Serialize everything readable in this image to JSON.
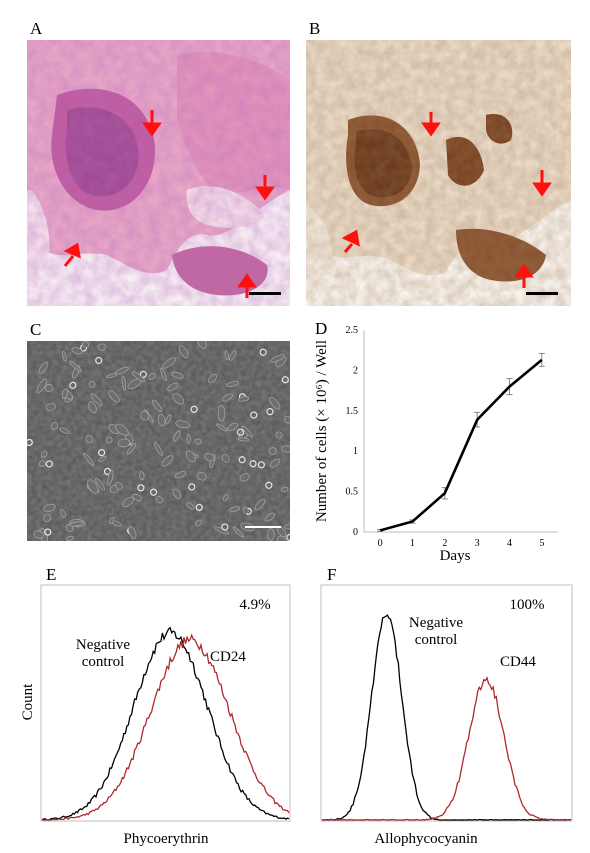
{
  "figure": {
    "panels": [
      {
        "label": "A",
        "kind": "micrograph",
        "stain": "H&E",
        "arrow_color": "#ff0000",
        "scale_bar": true
      },
      {
        "label": "B",
        "kind": "micrograph",
        "stain": "immunohistochemistry",
        "arrow_color": "#ff0000",
        "scale_bar": true
      },
      {
        "label": "C",
        "kind": "phase-contrast",
        "scale_bar": true
      },
      {
        "label": "D",
        "kind": "chart"
      },
      {
        "label": "E",
        "kind": "chart"
      },
      {
        "label": "F",
        "kind": "chart"
      }
    ]
  },
  "chart_data": [
    {
      "panel": "D",
      "type": "line",
      "x": [
        0,
        1,
        2,
        3,
        4,
        5
      ],
      "series": [
        {
          "values": [
            0.02,
            0.13,
            0.48,
            1.39,
            1.8,
            2.13
          ],
          "errors": [
            0.01,
            0.02,
            0.07,
            0.09,
            0.1,
            0.08
          ],
          "color": "#000000"
        }
      ],
      "xlabel": "Days",
      "ylabel": "Number of cells (× 10⁶) / Well",
      "xticks": [
        "0",
        "1",
        "2",
        "3",
        "4",
        "5"
      ],
      "yticks": [
        "0",
        "0.5",
        "1",
        "1.5",
        "2",
        "2.5"
      ],
      "xlim": [
        -0.5,
        5.5
      ],
      "ylim": [
        0,
        2.5
      ],
      "grid": false
    },
    {
      "panel": "E",
      "type": "line",
      "xlabel": "Phycoerythrin",
      "ylabel": "Count",
      "percent_label": "4.9%",
      "curve_labels": [
        {
          "line1": "Negative",
          "line2": "control"
        },
        {
          "line1": "CD24",
          "line2": ""
        }
      ],
      "series": [
        {
          "color": "#000000",
          "center": 0.52,
          "width": 0.15,
          "peak": 0.8
        },
        {
          "color": "#b0282c",
          "center": 0.6,
          "width": 0.16,
          "peak": 0.77
        }
      ]
    },
    {
      "panel": "F",
      "type": "line",
      "xlabel": "Allophycocyanin",
      "ylabel": "",
      "percent_label": "100%",
      "curve_labels": [
        {
          "line1": "Negative",
          "line2": "control"
        },
        {
          "line1": "CD44",
          "line2": ""
        }
      ],
      "series": [
        {
          "color": "#000000",
          "center": 0.26,
          "width": 0.06,
          "peak": 0.88
        },
        {
          "color": "#b0282c",
          "center": 0.66,
          "width": 0.07,
          "peak": 0.6
        }
      ]
    }
  ]
}
